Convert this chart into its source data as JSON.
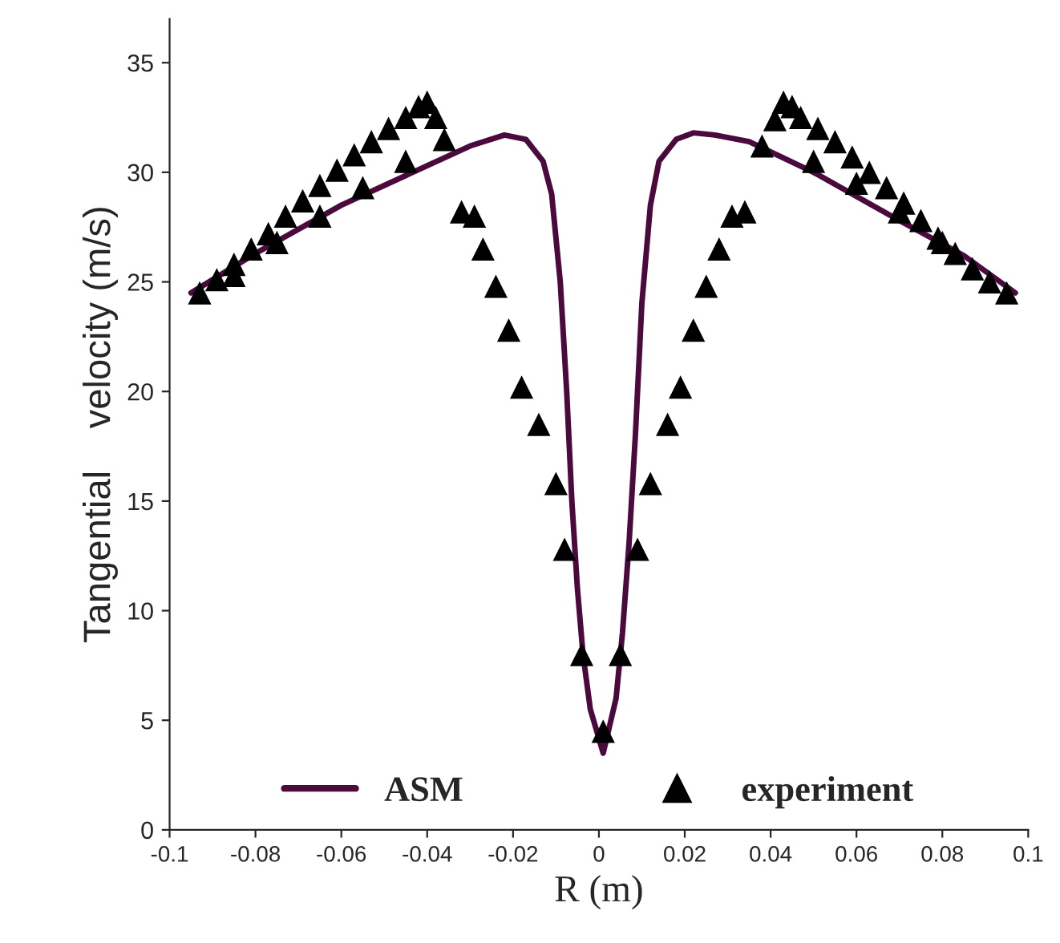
{
  "chart_data": {
    "type": "line",
    "xlabel": "R (m)",
    "ylabel": "Tangential    velocity (m/s)",
    "xlim": [
      -0.1,
      0.1
    ],
    "ylim": [
      0,
      37
    ],
    "xticks": [
      -0.1,
      -0.08,
      -0.06,
      -0.04,
      -0.02,
      0,
      0.02,
      0.04,
      0.06,
      0.08,
      0.1
    ],
    "yticks": [
      0,
      5,
      10,
      15,
      20,
      25,
      30,
      35
    ],
    "grid": false,
    "legend": "bottom",
    "series": [
      {
        "name": "ASM",
        "color": "#4b0a3e",
        "marker": "none",
        "line_style": "solid",
        "x": [
          -0.095,
          -0.08,
          -0.06,
          -0.04,
          -0.03,
          -0.022,
          -0.017,
          -0.013,
          -0.011,
          -0.009,
          -0.0075,
          -0.0063,
          -0.005,
          -0.0037,
          -0.002,
          0.001,
          0.004,
          0.0055,
          0.007,
          0.0085,
          0.01,
          0.012,
          0.014,
          0.018,
          0.022,
          0.027,
          0.035,
          0.05,
          0.07,
          0.085,
          0.097
        ],
        "values": [
          24.5,
          26.3,
          28.5,
          30.3,
          31.2,
          31.7,
          31.5,
          30.5,
          29,
          25,
          20,
          15,
          11,
          8,
          5.5,
          3.5,
          6,
          9,
          13,
          18,
          24,
          28.5,
          30.5,
          31.5,
          31.8,
          31.7,
          31.4,
          30,
          27.8,
          26.2,
          24.5
        ]
      },
      {
        "name": "experiment",
        "type": "scatter",
        "color": "#000000",
        "marker": "triangle",
        "x": [
          -0.093,
          -0.089,
          -0.085,
          -0.081,
          -0.077,
          -0.073,
          -0.069,
          -0.065,
          -0.061,
          -0.057,
          -0.053,
          -0.049,
          -0.045,
          -0.042,
          -0.04,
          -0.038,
          -0.036,
          -0.085,
          -0.075,
          -0.065,
          -0.055,
          -0.045,
          -0.032,
          -0.029,
          -0.027,
          -0.024,
          -0.021,
          -0.018,
          -0.014,
          -0.01,
          -0.008,
          -0.004,
          0.001,
          0.005,
          0.009,
          0.012,
          0.016,
          0.019,
          0.022,
          0.025,
          0.028,
          0.031,
          0.034,
          0.038,
          0.041,
          0.043,
          0.045,
          0.047,
          0.051,
          0.055,
          0.059,
          0.063,
          0.067,
          0.071,
          0.075,
          0.079,
          0.083,
          0.087,
          0.091,
          0.095,
          0.05,
          0.06,
          0.07,
          0.08
        ],
        "values": [
          24.5,
          25.1,
          25.8,
          26.5,
          27.2,
          28,
          28.7,
          29.4,
          30.1,
          30.8,
          31.4,
          32,
          32.5,
          33,
          33.2,
          32.5,
          31.5,
          25.3,
          26.8,
          28,
          29.3,
          30.5,
          28.2,
          28,
          26.5,
          24.8,
          22.8,
          20.2,
          18.5,
          15.8,
          12.8,
          8,
          4.5,
          8,
          12.8,
          15.8,
          18.5,
          20.2,
          22.8,
          24.8,
          26.5,
          28,
          28.2,
          31.2,
          32.4,
          33.2,
          33,
          32.5,
          32,
          31.4,
          30.7,
          30,
          29.3,
          28.6,
          27.8,
          27,
          26.3,
          25.6,
          25,
          24.5,
          30.5,
          29.5,
          28.2,
          26.8
        ]
      }
    ]
  }
}
